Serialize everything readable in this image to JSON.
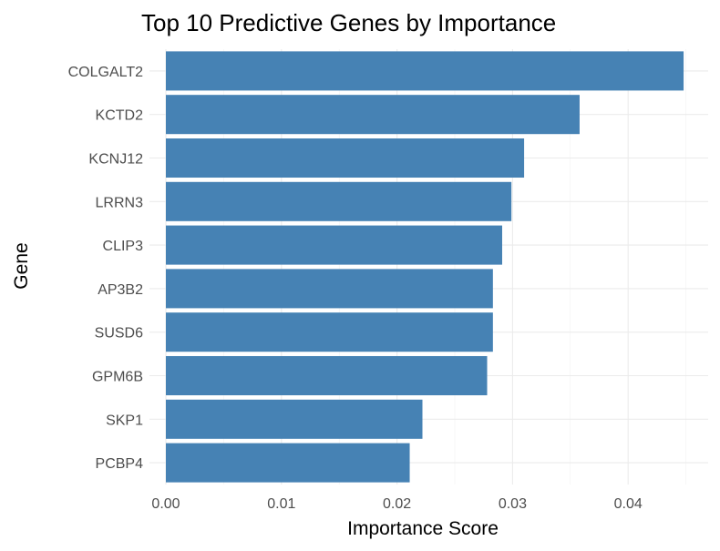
{
  "chart_data": {
    "type": "bar",
    "orientation": "horizontal",
    "title": "Top 10 Predictive Genes by Importance",
    "xlabel": "Importance Score",
    "ylabel": "Gene",
    "categories": [
      "COLGALT2",
      "KCTD2",
      "KCNJ12",
      "LRRN3",
      "CLIP3",
      "AP3B2",
      "SUSD6",
      "GPM6B",
      "SKP1",
      "PCBP4"
    ],
    "values": [
      0.0448,
      0.0358,
      0.031,
      0.0299,
      0.0291,
      0.0283,
      0.0283,
      0.0278,
      0.0222,
      0.0211
    ],
    "xlim": [
      0,
      0.047
    ],
    "x_ticks": [
      0.0,
      0.01,
      0.02,
      0.03,
      0.04
    ],
    "x_tick_labels": [
      "0.00",
      "0.01",
      "0.02",
      "0.03",
      "0.04"
    ],
    "grid": true,
    "legend": "none",
    "bar_color": "#4682B4"
  }
}
